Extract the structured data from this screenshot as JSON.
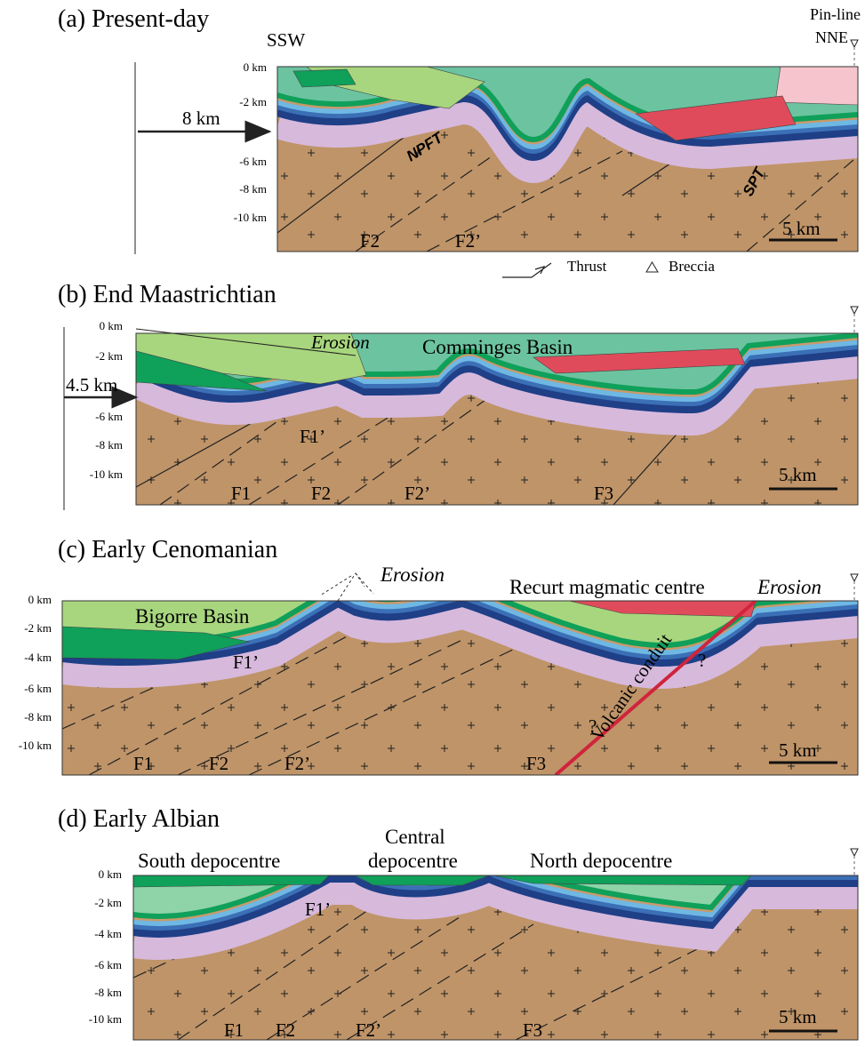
{
  "panels": [
    {
      "title": "(a)  Present-day",
      "orientation": {
        "left": "SSW",
        "pin_line": "Pin-line",
        "right": "NNE"
      },
      "depths": [
        "0 km",
        "-2 km",
        "-6 km",
        "-8 km",
        "-10 km"
      ],
      "shortening": "8 km",
      "labels": [
        "NPFT",
        "SPT",
        "F2",
        "F2’"
      ],
      "scale": "5 km"
    },
    {
      "title": "(b) End Maastrichtian",
      "depths": [
        "0 km",
        "-2 km",
        "-6 km",
        "-8 km",
        "-10 km"
      ],
      "shortening": "4.5 km",
      "labels": [
        "Erosion",
        "Comminges Basin",
        "F1’",
        "F1",
        "F2",
        "F2’",
        "F3"
      ],
      "scale": "5 km"
    },
    {
      "title": "(c) Early Cenomanian",
      "depths": [
        "0 km",
        "-2 km",
        "-4 km",
        "-6 km",
        "-8 km",
        "-10 km"
      ],
      "labels": [
        "Erosion",
        "Recurt magmatic centre",
        "Erosion",
        "Bigorre Basin",
        "F1’",
        "Volcanic conduit",
        "?",
        "?",
        "F1",
        "F2",
        "F2’",
        "F3"
      ],
      "scale": "5 km"
    },
    {
      "title": "(d) Early Albian",
      "depths": [
        "0 km",
        "-2 km",
        "-4 km",
        "-6 km",
        "-8 km",
        "-10 km"
      ],
      "labels": [
        "South depocentre",
        "Central",
        "depocentre",
        "North depocentre",
        "F1’",
        "F1",
        "F2",
        "F2’",
        "F3"
      ],
      "scale": "5 km"
    }
  ],
  "legend": {
    "thrust": "Thrust",
    "breccia": "Breccia"
  }
}
